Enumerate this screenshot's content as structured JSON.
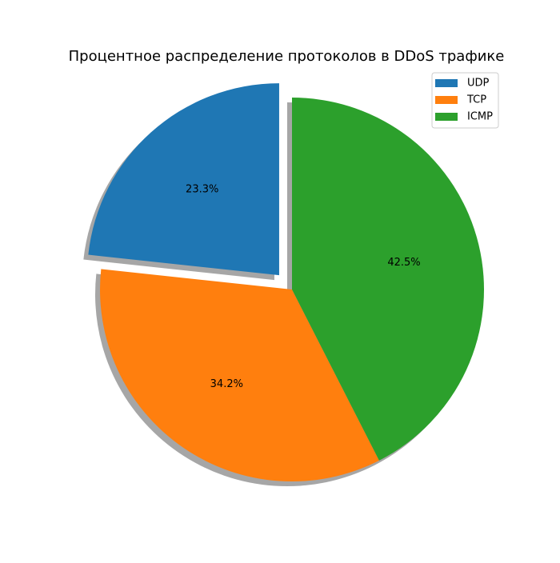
{
  "chart_data": {
    "type": "pie",
    "title": "Процентное распределение протоколов в DDoS трафике",
    "labels": [
      "UDP",
      "TCP",
      "ICMP"
    ],
    "values": [
      23.3,
      34.2,
      42.5
    ],
    "value_labels": [
      "23.3%",
      "34.2%",
      "42.5%"
    ],
    "colors": [
      "#1f77b4",
      "#ff7f0e",
      "#2ca02c"
    ],
    "exploded": [
      "UDP"
    ],
    "shadow": true,
    "start_angle_deg": 90,
    "direction": "counterclockwise",
    "legend": {
      "position": "top-right",
      "entries": [
        "UDP",
        "TCP",
        "ICMP"
      ]
    }
  }
}
